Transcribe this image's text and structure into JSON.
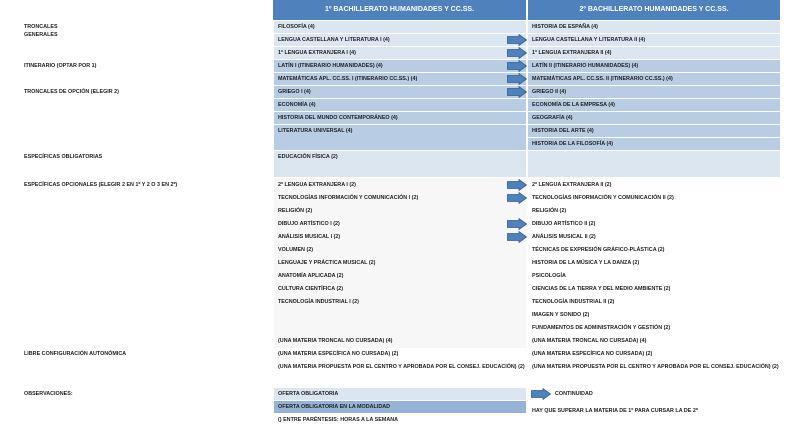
{
  "header": {
    "first_year": "1º BACHILLERATO HUMANIDADES Y CC.SS.",
    "second_year": "2º BACHILLERATO HUMANIDADES Y CC.SS."
  },
  "row_labels": [
    "TRONCALES",
    "GENERALES",
    "ITINERARIO (OPTAR POR 1)",
    "TRONCALES DE OPCIÓN (ELEGIR 2)",
    "ESPECÍFICAS OBLIGATORIAS",
    "ESPECÍFICAS OPCIONALES (ELEGIR 2 EN 1º Y 2 O 3 EN 2º)",
    "LIBRE CONFIGURACIÓN AUTONÓMICA",
    "OBSERVACIONES:"
  ],
  "first_year": [
    "FILOSOFÍA (4)",
    "LENGUA CASTELLANA Y LITERATURA  I (4)",
    "1ª LENGUA EXTRANJERA I (4)",
    "LATÍN I (ITINERARIO HUMANIDADES) (4)",
    "MATEMÁTICAS APL. CC.SS. I (ITINERARIO CC.SS.) (4)",
    "GRIEGO I (4)",
    "ECONOMÍA (4)",
    "HISTORIA DEL MUNDO CONTEMPORÁNEO (4)",
    "LITERATURA UNIVERSAL (4)",
    "EDUCACIÓN FÍSICA (2)",
    "2ª LENGUA EXTRANJERA I (2)",
    "TECNOLOGÍAS INFORMACIÓN Y COMUNICACIÓN I (2)",
    "RELIGIÓN (2)",
    "DIBUJO ARTÍSTICO I (2)",
    "ANÁLISIS MUSICAL I (2)",
    "VOLUMEN (2)",
    "LENGUAJE Y PRÁCTICA MUSICAL (2)",
    "ANATOMÍA APLICADA (2)",
    "CULTURA CIENTÍFICA (2)",
    "TECNOLOGÍA INDUSTRIAL I (2)",
    "(UNA MATERIA TRONCAL NO CURSADA) (4)",
    "(UNA MATERIA ESPECÍFICA NO CURSADA) (2)",
    "(UNA MATERIA PROPUESTA POR EL CENTRO Y APROBADA POR EL CONSEJ. EDUCACIÓN) (2)"
  ],
  "second_year": [
    "HISTORIA DE ESPAÑA (4)",
    "LENGUA CASTELLANA Y LITERATURA II (4)",
    "1ª LENGUA EXTRANJERA II (4)",
    "LATÍN II (ITINERARIO HUMANIDADES) (4)",
    "MATEMÁTICAS APL. CC.SS. II (ITINERARIO CC.SS.) (4)",
    "GRIEGO II (4)",
    "ECONOMÍA DE LA EMPRESA (4)",
    "GEOGRAFÍA (4)",
    "HISTORIA DEL ARTE (4)",
    "HISTORIA DE LA FILOSOFÍA (4)",
    "2ª LENGUA EXTRANJERA II (2)",
    "TECNOLOGÍAS INFORMACIÓN Y COMUNICACIÓN II (2)",
    "RELIGIÓN (2)",
    "DIBUJO ARTÍSTICO II (2)",
    "ANÁLISIS MUSICAL II (2)",
    "TÉCNICAS DE EXPRESIÓN GRÁFICO-PLÁSTICA (2)",
    "HISTORIA DE LA MÚSICA Y LA DANZA (2)",
    "PSICOLOGÍA",
    "CIENCIAS DE LA TIERRA Y DEL MEDIO AMBIENTE (2)",
    "TECNOLOGÍA INDUSTRIAL II (2)",
    "IMAGEN Y SONIDO (2)",
    "FUNDAMENTOS DE ADMINISTRACIÓN Y GESTIÓN (2)",
    "(UNA MATERIA TRONCAL NO CURSADA) (4)",
    "(UNA MATERIA ESPECÍFICA NO CURSADA) (2)",
    "(UNA MATERIA PROPUESTA POR EL CENTRO Y APROBADA POR EL CONSEJ. EDUCACIÓN) (2)"
  ],
  "legend": {
    "items": [
      "OFERTA OBLIGATORIA",
      "OFERTA OBLIGATORIA EN LA MODALIDAD",
      "() ENTRE PARÉNTESIS: HORAS A LA SEMANA"
    ],
    "arrow": "CONTINUIDAD",
    "note": "HAY QUE SUPERAR LA MATERIA DE 1º PARA CURSAR LA DE 2º"
  }
}
